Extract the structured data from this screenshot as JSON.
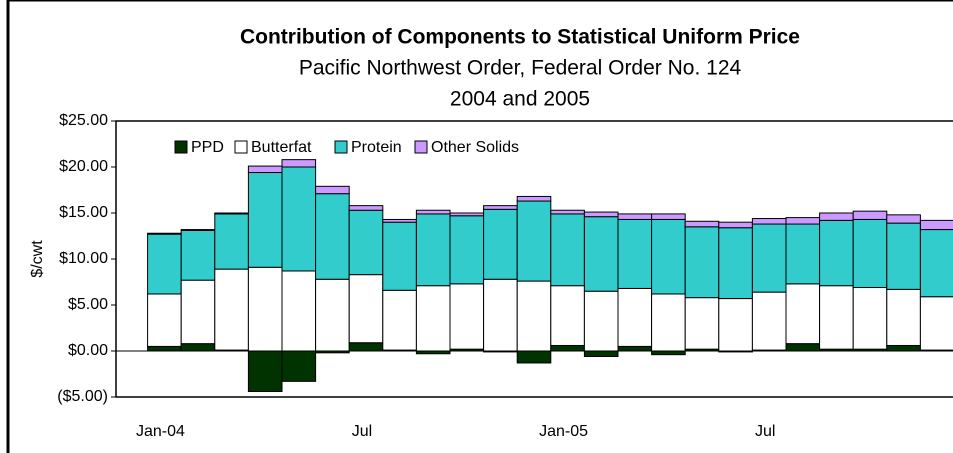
{
  "chart_data": {
    "type": "bar",
    "stacked": true,
    "title": "Contribution of Components to Statistical Uniform Price",
    "subtitle": "Pacific Northwest Order, Federal Order No. 124",
    "subtitle2": "2004 and 2005",
    "y_label": "$/cwt",
    "categories": [
      "Jan-04",
      null,
      null,
      null,
      null,
      null,
      "Jul",
      null,
      null,
      null,
      null,
      null,
      "Jan-05",
      null,
      null,
      null,
      null,
      null,
      "Jul",
      null,
      null,
      null,
      null,
      null
    ],
    "series": [
      {
        "name": "PPD",
        "color": "#003300",
        "values": [
          0.5,
          0.8,
          0.1,
          -4.4,
          -3.3,
          -0.2,
          0.9,
          0.1,
          -0.3,
          0.2,
          -0.1,
          -1.3,
          0.6,
          -0.6,
          0.5,
          -0.4,
          0.2,
          -0.1,
          0.1,
          0.8,
          0.2,
          0.2,
          0.6,
          0.1
        ]
      },
      {
        "name": "Butterfat",
        "color": "#ffffff",
        "values": [
          5.7,
          6.9,
          8.8,
          9.1,
          8.7,
          7.8,
          7.4,
          6.5,
          7.1,
          7.1,
          7.8,
          7.6,
          6.5,
          6.5,
          6.3,
          6.2,
          5.6,
          5.7,
          6.3,
          6.5,
          6.9,
          6.7,
          6.1,
          5.8
        ]
      },
      {
        "name": "Protein",
        "color": "#33cccc",
        "values": [
          6.5,
          5.4,
          6.0,
          10.3,
          11.3,
          9.3,
          7.0,
          7.4,
          7.8,
          7.4,
          7.6,
          8.7,
          7.8,
          8.1,
          7.5,
          8.1,
          7.7,
          7.7,
          7.4,
          6.5,
          7.1,
          7.4,
          7.2,
          7.3
        ]
      },
      {
        "name": "Other Solids",
        "color": "#cc99ff",
        "values": [
          0.1,
          0.1,
          0.1,
          0.7,
          0.8,
          0.8,
          0.5,
          0.3,
          0.4,
          0.3,
          0.4,
          0.5,
          0.4,
          0.5,
          0.6,
          0.6,
          0.6,
          0.6,
          0.6,
          0.7,
          0.8,
          0.9,
          0.9,
          1.0
        ]
      }
    ],
    "ylim": [
      -5,
      25
    ],
    "yticks": [
      {
        "value": -5,
        "label": "($5.00)"
      },
      {
        "value": 0,
        "label": "$0.00"
      },
      {
        "value": 5,
        "label": "$5.00"
      },
      {
        "value": 10,
        "label": "$10.00"
      },
      {
        "value": 15,
        "label": "$15.00"
      },
      {
        "value": 20,
        "label": "$20.00"
      },
      {
        "value": 25,
        "label": "$25.00"
      }
    ],
    "legend": "top-left"
  }
}
